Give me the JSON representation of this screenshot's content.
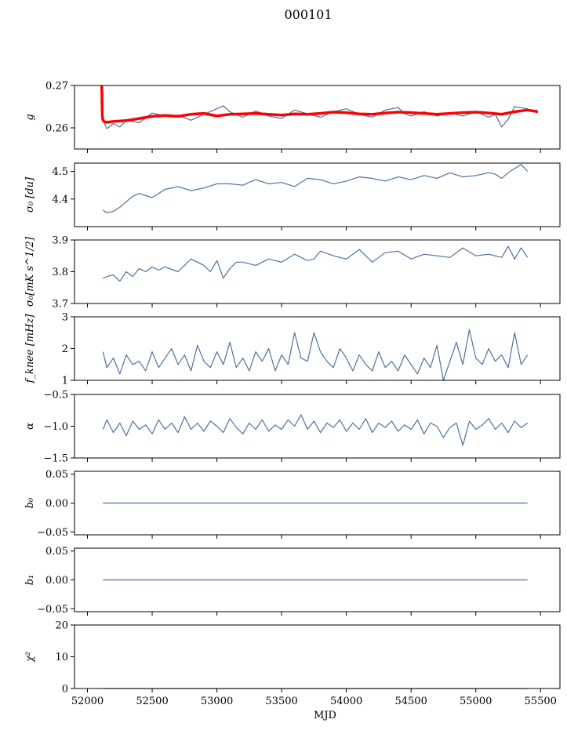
{
  "figure": {
    "title": "000101"
  },
  "chart_data": [
    {
      "type": "line",
      "ylabel": "g",
      "ylim": [
        0.255,
        0.27
      ],
      "yticks": [
        0.26,
        0.27
      ],
      "ytick_labels": [
        "0.26",
        "0.27"
      ],
      "xlim": [
        51900,
        55650
      ],
      "color": "#4c72a0",
      "series": [
        {
          "x": [
            52110,
            52150,
            52200,
            52250,
            52300,
            52400,
            52500,
            52600,
            52700,
            52800,
            52900,
            53000,
            53050,
            53100,
            53200,
            53300,
            53400,
            53500,
            53600,
            53700,
            53800,
            53900,
            54000,
            54100,
            54200,
            54300,
            54400,
            54450,
            54500,
            54600,
            54700,
            54800,
            54900,
            55000,
            55100,
            55150,
            55200,
            55250,
            55300,
            55400
          ],
          "y": [
            0.2625,
            0.2598,
            0.261,
            0.2602,
            0.2618,
            0.2612,
            0.2635,
            0.2628,
            0.263,
            0.2618,
            0.2632,
            0.2645,
            0.2652,
            0.2638,
            0.2625,
            0.264,
            0.2628,
            0.2622,
            0.2642,
            0.2633,
            0.2625,
            0.2638,
            0.2645,
            0.2632,
            0.2625,
            0.2642,
            0.2648,
            0.2633,
            0.2628,
            0.2638,
            0.2628,
            0.2635,
            0.2628,
            0.2638,
            0.2625,
            0.2632,
            0.2602,
            0.262,
            0.265,
            0.2645
          ]
        },
        {
          "x": [
            52110,
            52115,
            52120,
            52130,
            52150,
            52200,
            52300,
            52400,
            52500,
            52600,
            52700,
            52800,
            52900,
            53000,
            53100,
            53200,
            53300,
            53400,
            53500,
            53600,
            53700,
            53800,
            53900,
            54000,
            54100,
            54200,
            54300,
            54400,
            54500,
            54600,
            54700,
            54800,
            54900,
            55000,
            55100,
            55200,
            55300,
            55400,
            55480
          ],
          "y": [
            0.27,
            0.2628,
            0.2618,
            0.2614,
            0.2613,
            0.2615,
            0.2617,
            0.2622,
            0.2627,
            0.2629,
            0.2627,
            0.2632,
            0.2634,
            0.2628,
            0.2632,
            0.2633,
            0.2634,
            0.2632,
            0.263,
            0.2633,
            0.2632,
            0.2634,
            0.2637,
            0.2636,
            0.2633,
            0.2632,
            0.2635,
            0.2637,
            0.2636,
            0.2634,
            0.2632,
            0.2634,
            0.2636,
            0.2637,
            0.2635,
            0.2632,
            0.2638,
            0.2642,
            0.2638
          ],
          "color": "#ff0000"
        }
      ]
    },
    {
      "type": "line",
      "ylabel": "σ₀ [du]",
      "ylim": [
        4.3,
        4.53
      ],
      "yticks": [
        4.4,
        4.5
      ],
      "ytick_labels": [
        "4.4",
        "4.5"
      ],
      "xlim": [
        51900,
        55650
      ],
      "color": "#4c72a0",
      "series": [
        {
          "x": [
            52120,
            52150,
            52200,
            52250,
            52300,
            52350,
            52400,
            52500,
            52600,
            52700,
            52800,
            52900,
            53000,
            53100,
            53200,
            53300,
            53400,
            53500,
            53600,
            53700,
            53800,
            53900,
            54000,
            54100,
            54200,
            54300,
            54400,
            54500,
            54600,
            54700,
            54800,
            54900,
            55000,
            55100,
            55150,
            55200,
            55250,
            55300,
            55350,
            55400
          ],
          "y": [
            4.36,
            4.35,
            4.355,
            4.37,
            4.39,
            4.41,
            4.42,
            4.405,
            4.435,
            4.445,
            4.43,
            4.44,
            4.455,
            4.455,
            4.45,
            4.47,
            4.455,
            4.46,
            4.445,
            4.475,
            4.47,
            4.455,
            4.465,
            4.48,
            4.475,
            4.465,
            4.48,
            4.47,
            4.485,
            4.475,
            4.495,
            4.48,
            4.485,
            4.495,
            4.49,
            4.475,
            4.495,
            4.51,
            4.525,
            4.5
          ]
        }
      ]
    },
    {
      "type": "line",
      "ylabel": "σ₀[mK s^1/2]",
      "ylim": [
        3.7,
        3.9
      ],
      "yticks": [
        3.7,
        3.8,
        3.9
      ],
      "ytick_labels": [
        "3.7",
        "3.8",
        "3.9"
      ],
      "xlim": [
        51900,
        55650
      ],
      "color": "#4c72a0",
      "series": [
        {
          "x": [
            52120,
            52150,
            52200,
            52250,
            52300,
            52350,
            52400,
            52450,
            52500,
            52550,
            52600,
            52700,
            52800,
            52900,
            52950,
            53000,
            53050,
            53100,
            53150,
            53200,
            53300,
            53400,
            53500,
            53600,
            53700,
            53750,
            53800,
            53900,
            54000,
            54100,
            54200,
            54300,
            54400,
            54500,
            54600,
            54700,
            54800,
            54900,
            55000,
            55100,
            55200,
            55250,
            55300,
            55350,
            55400
          ],
          "y": [
            3.778,
            3.785,
            3.79,
            3.77,
            3.8,
            3.785,
            3.81,
            3.8,
            3.815,
            3.805,
            3.815,
            3.8,
            3.84,
            3.82,
            3.8,
            3.835,
            3.78,
            3.81,
            3.83,
            3.83,
            3.82,
            3.84,
            3.83,
            3.855,
            3.835,
            3.84,
            3.865,
            3.85,
            3.84,
            3.87,
            3.83,
            3.86,
            3.865,
            3.84,
            3.855,
            3.85,
            3.845,
            3.875,
            3.85,
            3.855,
            3.845,
            3.88,
            3.84,
            3.875,
            3.845
          ]
        }
      ]
    },
    {
      "type": "line",
      "ylabel": "f_knee [mHz]",
      "ylim": [
        1,
        3
      ],
      "yticks": [
        1,
        2,
        3
      ],
      "ytick_labels": [
        "1",
        "2",
        "3"
      ],
      "xlim": [
        51900,
        55650
      ],
      "color": "#4c72a0",
      "series": [
        {
          "x": [
            52120,
            52150,
            52200,
            52250,
            52300,
            52350,
            52400,
            52450,
            52500,
            52550,
            52600,
            52650,
            52700,
            52750,
            52800,
            52850,
            52900,
            52950,
            53000,
            53050,
            53100,
            53150,
            53200,
            53250,
            53300,
            53350,
            53400,
            53450,
            53500,
            53550,
            53600,
            53650,
            53700,
            53750,
            53800,
            53850,
            53900,
            53950,
            54000,
            54050,
            54100,
            54150,
            54200,
            54250,
            54300,
            54350,
            54400,
            54450,
            54500,
            54550,
            54600,
            54650,
            54700,
            54750,
            54800,
            54850,
            54900,
            54950,
            55000,
            55050,
            55100,
            55150,
            55200,
            55250,
            55300,
            55350,
            55400
          ],
          "y": [
            1.9,
            1.4,
            1.7,
            1.2,
            1.8,
            1.5,
            1.6,
            1.3,
            1.9,
            1.4,
            1.7,
            2.0,
            1.5,
            1.8,
            1.3,
            2.1,
            1.6,
            1.4,
            1.9,
            1.5,
            2.2,
            1.4,
            1.7,
            1.3,
            1.9,
            1.6,
            2.0,
            1.3,
            1.8,
            1.5,
            2.5,
            1.7,
            1.6,
            2.5,
            1.9,
            1.6,
            1.4,
            2.0,
            1.7,
            1.3,
            1.8,
            1.5,
            1.3,
            1.9,
            1.4,
            1.6,
            1.3,
            1.8,
            1.5,
            1.2,
            1.7,
            1.4,
            2.1,
            1.0,
            1.6,
            2.2,
            1.5,
            2.6,
            1.7,
            1.5,
            2.0,
            1.6,
            1.8,
            1.4,
            2.5,
            1.5,
            1.8
          ]
        }
      ]
    },
    {
      "type": "line",
      "ylabel": "α",
      "ylim": [
        -1.5,
        -0.5
      ],
      "yticks": [
        -1.5,
        -1.0,
        -0.5
      ],
      "ytick_labels": [
        "−1.5",
        "−1.0",
        "−0.5"
      ],
      "xlim": [
        51900,
        55650
      ],
      "color": "#4c72a0",
      "series": [
        {
          "x": [
            52120,
            52150,
            52200,
            52250,
            52300,
            52350,
            52400,
            52450,
            52500,
            52550,
            52600,
            52650,
            52700,
            52750,
            52800,
            52850,
            52900,
            52950,
            53000,
            53050,
            53100,
            53150,
            53200,
            53250,
            53300,
            53350,
            53400,
            53450,
            53500,
            53550,
            53600,
            53650,
            53700,
            53750,
            53800,
            53850,
            53900,
            53950,
            54000,
            54050,
            54100,
            54150,
            54200,
            54250,
            54300,
            54350,
            54400,
            54450,
            54500,
            54550,
            54600,
            54650,
            54700,
            54750,
            54800,
            54850,
            54900,
            54950,
            55000,
            55050,
            55100,
            55150,
            55200,
            55250,
            55300,
            55350,
            55400
          ],
          "y": [
            -1.05,
            -0.9,
            -1.1,
            -0.95,
            -1.15,
            -0.92,
            -1.05,
            -0.98,
            -1.12,
            -0.9,
            -1.05,
            -0.95,
            -1.1,
            -0.85,
            -1.05,
            -0.95,
            -1.08,
            -0.92,
            -1.0,
            -1.1,
            -0.88,
            -1.02,
            -1.12,
            -0.95,
            -1.05,
            -0.9,
            -1.08,
            -0.98,
            -1.05,
            -0.9,
            -1.0,
            -0.82,
            -1.05,
            -0.92,
            -1.1,
            -0.95,
            -1.02,
            -0.9,
            -1.08,
            -0.95,
            -1.05,
            -0.88,
            -1.1,
            -0.95,
            -1.02,
            -0.92,
            -1.08,
            -0.98,
            -1.05,
            -0.9,
            -1.12,
            -0.95,
            -1.0,
            -1.18,
            -1.02,
            -0.95,
            -1.3,
            -0.92,
            -1.05,
            -0.98,
            -0.88,
            -1.05,
            -0.95,
            -1.1,
            -0.92,
            -1.02,
            -0.95
          ]
        }
      ]
    },
    {
      "type": "line",
      "ylabel": "b₀",
      "ylim": [
        -0.055,
        0.055
      ],
      "yticks": [
        -0.05,
        0.0,
        0.05
      ],
      "ytick_labels": [
        "−0.05",
        "0.00",
        "0.05"
      ],
      "xlim": [
        51900,
        55650
      ],
      "color": "#4c72a0",
      "series": [
        {
          "x": [
            52120,
            55400
          ],
          "y": [
            0,
            0
          ]
        }
      ]
    },
    {
      "type": "line",
      "ylabel": "b₁",
      "ylim": [
        -0.055,
        0.055
      ],
      "yticks": [
        -0.05,
        0.0,
        0.05
      ],
      "ytick_labels": [
        "−0.05",
        "0.00",
        "0.05"
      ],
      "xlim": [
        51900,
        55650
      ],
      "color": "#4c72a0",
      "series": [
        {
          "x": [
            52120,
            55400
          ],
          "y": [
            0,
            0
          ]
        }
      ]
    },
    {
      "type": "line",
      "ylabel": "χ²",
      "ylim": [
        0,
        20
      ],
      "yticks": [
        0,
        10,
        20
      ],
      "ytick_labels": [
        "0",
        "10",
        "20"
      ],
      "xlim": [
        51900,
        55650
      ],
      "xlabel": "MJD",
      "xticks": [
        52000,
        52500,
        53000,
        53500,
        54000,
        54500,
        55000,
        55500
      ],
      "xtick_labels": [
        "52000",
        "52500",
        "53000",
        "53500",
        "54000",
        "54500",
        "55000",
        "55500"
      ],
      "color": "#4c72a0",
      "series": [
        {
          "x": [
            52120,
            55400
          ],
          "y": [
            0,
            0
          ]
        }
      ]
    }
  ]
}
